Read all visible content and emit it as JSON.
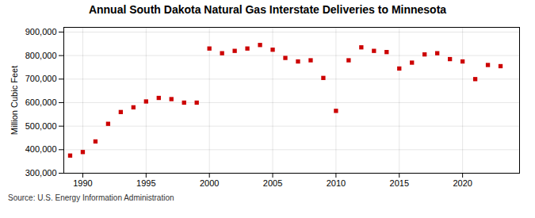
{
  "chart_data": {
    "type": "scatter",
    "title": "Annual South Dakota Natural Gas Interstate Deliveries to Minnesota",
    "ylabel": "Million Cubic Feet",
    "annotations": [
      "Source: U.S. Energy Information Administration"
    ],
    "x": [
      1989,
      1990,
      1991,
      1992,
      1993,
      1994,
      1995,
      1996,
      1997,
      1998,
      1999,
      2000,
      2001,
      2002,
      2003,
      2004,
      2005,
      2006,
      2007,
      2008,
      2009,
      2010,
      2011,
      2012,
      2013,
      2014,
      2015,
      2016,
      2017,
      2018,
      2019,
      2020,
      2021,
      2022,
      2023
    ],
    "values": [
      375000,
      390000,
      435000,
      510000,
      560000,
      580000,
      605000,
      620000,
      615000,
      600000,
      600000,
      830000,
      810000,
      820000,
      830000,
      845000,
      825000,
      790000,
      775000,
      780000,
      705000,
      565000,
      780000,
      835000,
      820000,
      815000,
      745000,
      770000,
      805000,
      810000,
      785000,
      775000,
      700000,
      760000,
      755000
    ],
    "color": "#cc0000",
    "marker": "square",
    "xlim": [
      1988.5,
      2024.5
    ],
    "ylim": [
      300000,
      920000
    ],
    "xticks": [
      1990,
      1995,
      2000,
      2005,
      2010,
      2015,
      2020
    ],
    "yticks": [
      {
        "value": 300000,
        "label": "300,000"
      },
      {
        "value": 400000,
        "label": "400,000"
      },
      {
        "value": 500000,
        "label": "500,000"
      },
      {
        "value": 600000,
        "label": "600,000"
      },
      {
        "value": 700000,
        "label": "700,000"
      },
      {
        "value": 800000,
        "label": "800,000"
      },
      {
        "value": 900000,
        "label": "900,000"
      }
    ],
    "grid": true
  }
}
